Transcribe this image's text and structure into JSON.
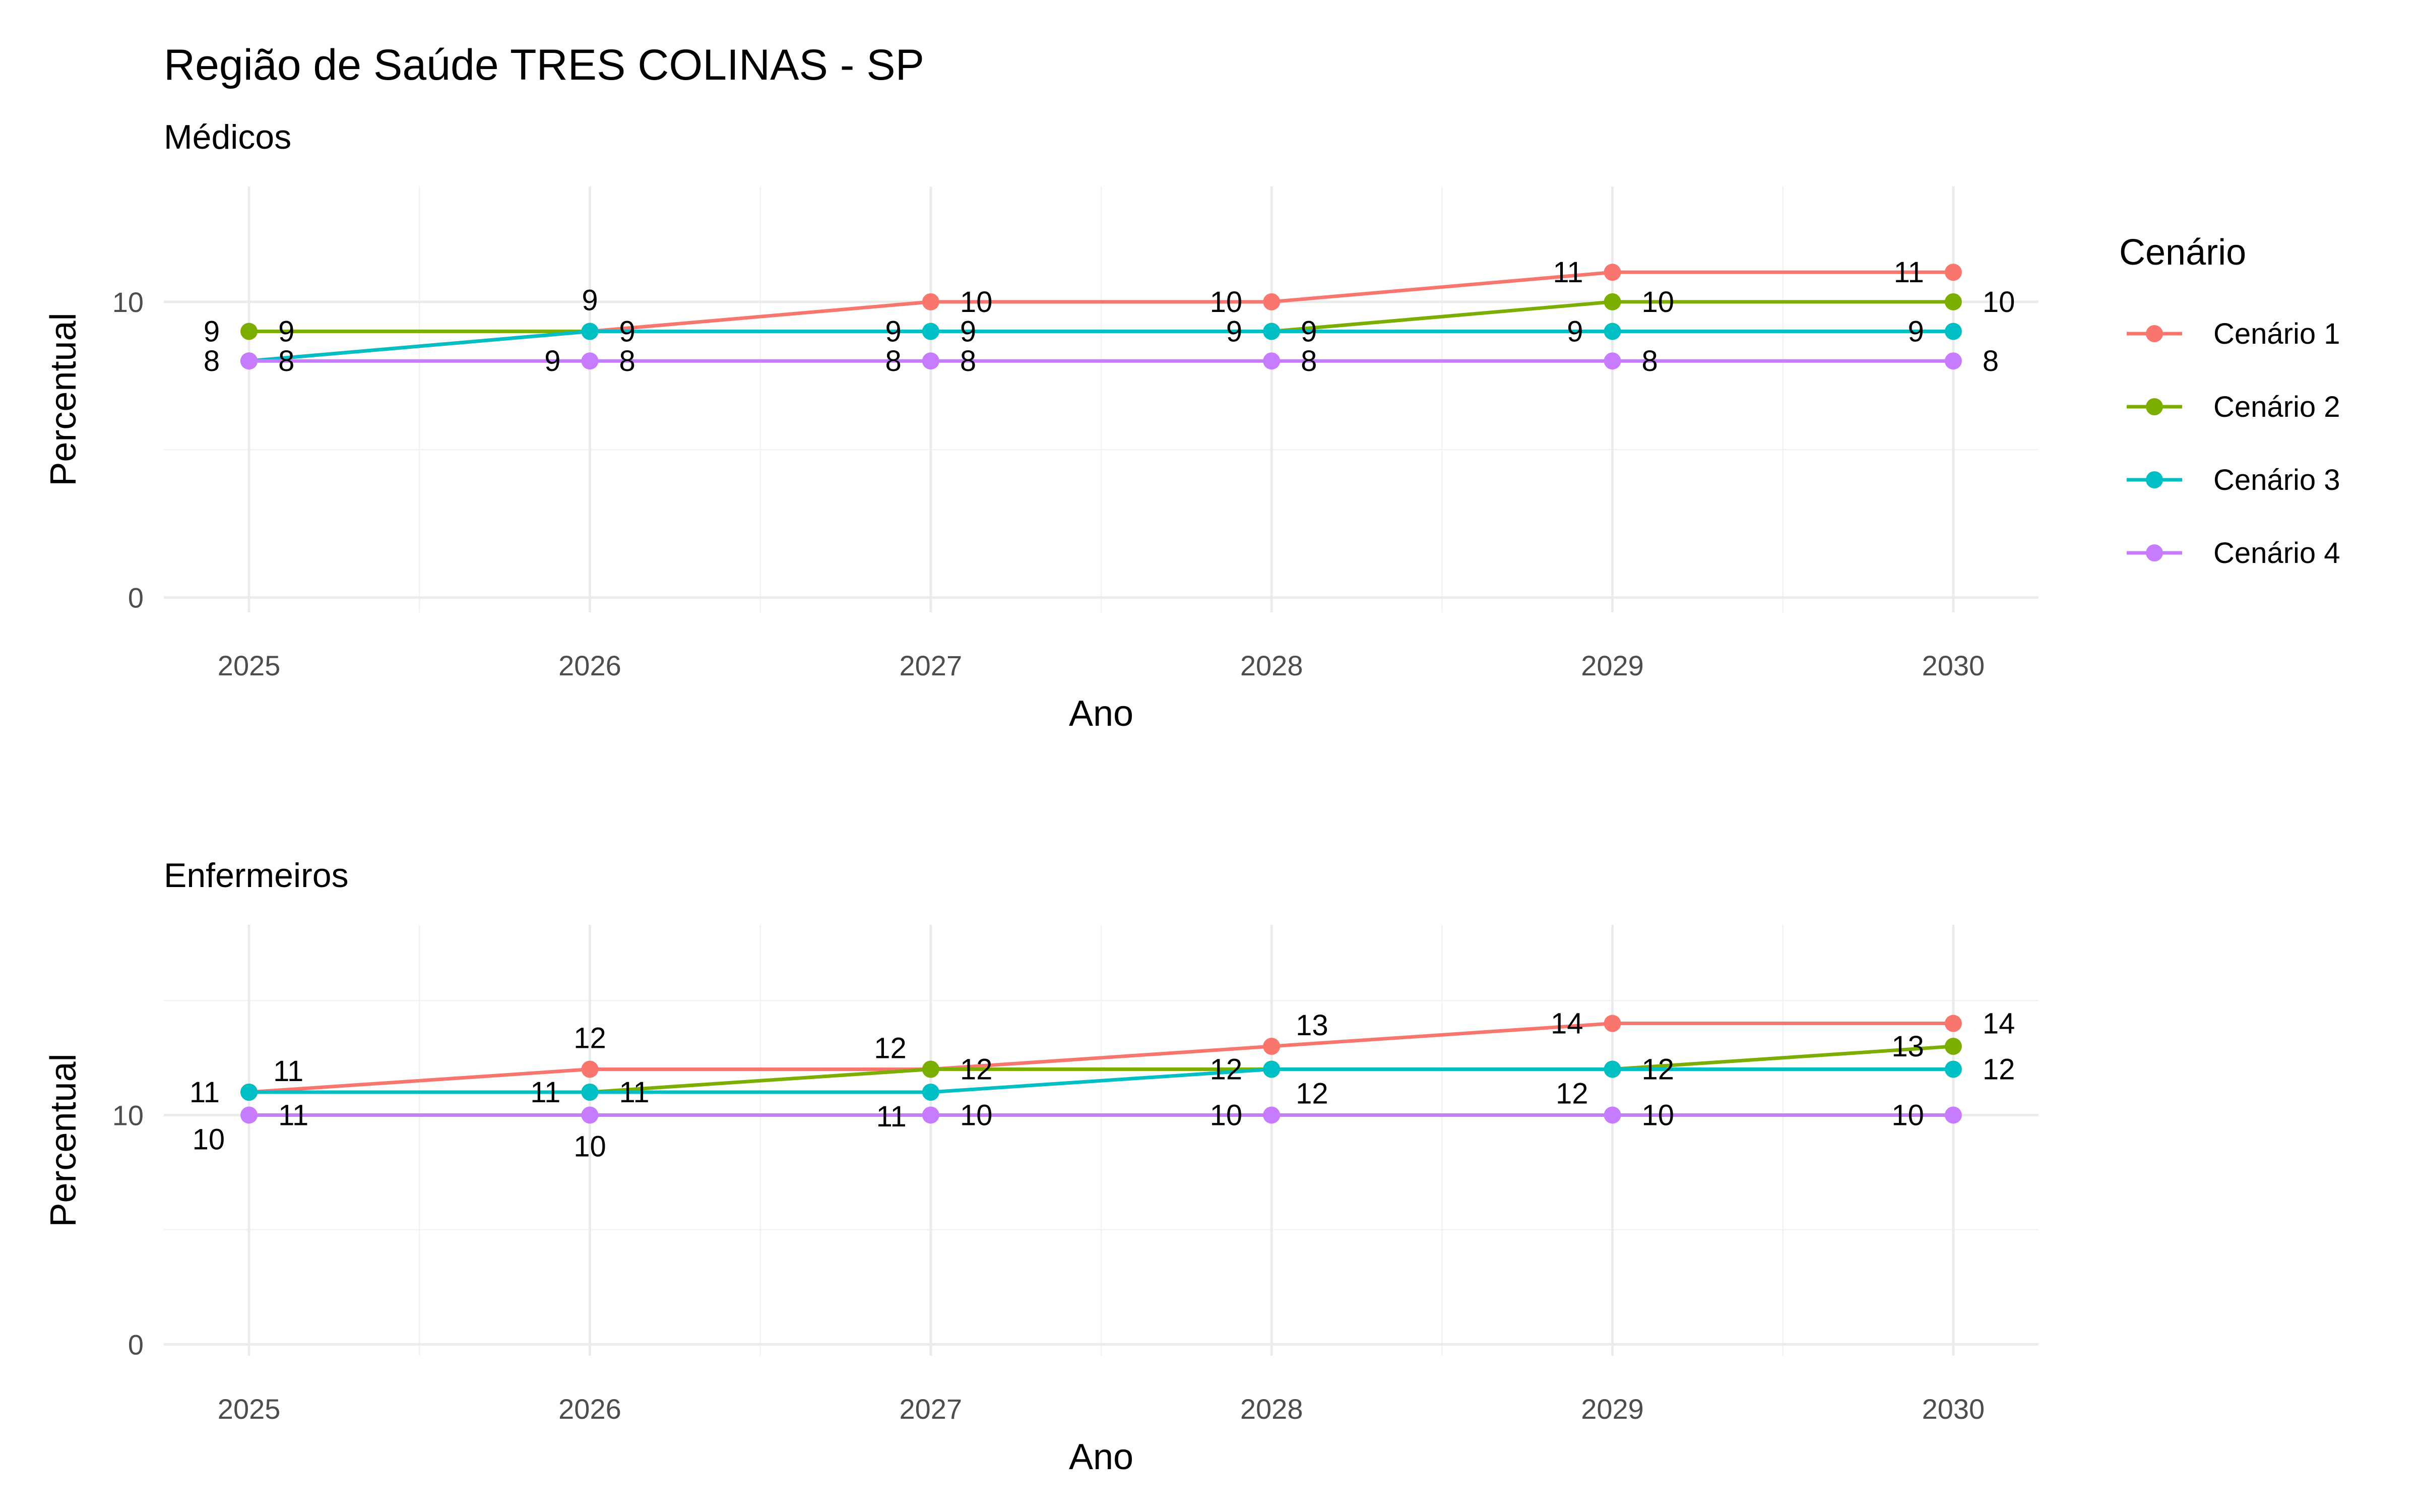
{
  "title": "Região de Saúde TRES COLINAS - SP",
  "legend": {
    "title": "Cenário",
    "position": "right",
    "items": [
      {
        "label": "Cenário 1",
        "color": "#F8766D"
      },
      {
        "label": "Cenário 2",
        "color": "#7CAE00"
      },
      {
        "label": "Cenário 3",
        "color": "#00BFC4"
      },
      {
        "label": "Cenário 4",
        "color": "#C77CFF"
      }
    ]
  },
  "chart_data": [
    {
      "type": "line",
      "subtitle": "Médicos",
      "xlabel": "Ano",
      "ylabel": "Percentual",
      "x": [
        2025,
        2026,
        2027,
        2028,
        2029,
        2030
      ],
      "y_ticks": [
        0,
        10
      ],
      "ylim": [
        -0.5,
        13.9
      ],
      "grid": true,
      "series": [
        {
          "name": "Cenário 1",
          "values": [
            8,
            9,
            10,
            10,
            11,
            11
          ]
        },
        {
          "name": "Cenário 2",
          "values": [
            9,
            9,
            9,
            9,
            10,
            10
          ]
        },
        {
          "name": "Cenário 3",
          "values": [
            8,
            9,
            9,
            9,
            9,
            9
          ]
        },
        {
          "name": "Cenário 4",
          "values": [
            8,
            8,
            8,
            8,
            8,
            8
          ]
        }
      ],
      "data_labels": [
        {
          "x": 2025,
          "y": 9,
          "text": "9",
          "side": "left"
        },
        {
          "x": 2025,
          "y": 9,
          "text": "9",
          "side": "right"
        },
        {
          "x": 2025,
          "y": 8,
          "text": "8",
          "side": "left"
        },
        {
          "x": 2025,
          "y": 8,
          "text": "8",
          "side": "right"
        },
        {
          "x": 2026,
          "y": 9,
          "text": "9",
          "side": "above"
        },
        {
          "x": 2026,
          "y": 9,
          "text": "9",
          "side": "right"
        },
        {
          "x": 2026,
          "y": 8,
          "text": "9",
          "side": "left"
        },
        {
          "x": 2026,
          "y": 8,
          "text": "8",
          "side": "right"
        },
        {
          "x": 2027,
          "y": 10,
          "text": "10",
          "side": "right"
        },
        {
          "x": 2027,
          "y": 9,
          "text": "9",
          "side": "left"
        },
        {
          "x": 2027,
          "y": 9,
          "text": "9",
          "side": "right"
        },
        {
          "x": 2027,
          "y": 8,
          "text": "8",
          "side": "left"
        },
        {
          "x": 2027,
          "y": 8,
          "text": "8",
          "side": "right"
        },
        {
          "x": 2028,
          "y": 10,
          "text": "10",
          "side": "left"
        },
        {
          "x": 2028,
          "y": 9,
          "text": "9",
          "side": "left"
        },
        {
          "x": 2028,
          "y": 9,
          "text": "9",
          "side": "right"
        },
        {
          "x": 2028,
          "y": 8,
          "text": "8",
          "side": "right"
        },
        {
          "x": 2029,
          "y": 11,
          "text": "11",
          "side": "left"
        },
        {
          "x": 2029,
          "y": 10,
          "text": "10",
          "side": "right"
        },
        {
          "x": 2029,
          "y": 9,
          "text": "9",
          "side": "left"
        },
        {
          "x": 2029,
          "y": 8,
          "text": "8",
          "side": "right"
        },
        {
          "x": 2030,
          "y": 11,
          "text": "11",
          "side": "left"
        },
        {
          "x": 2030,
          "y": 10,
          "text": "10",
          "side": "right"
        },
        {
          "x": 2030,
          "y": 9,
          "text": "9",
          "side": "left"
        },
        {
          "x": 2030,
          "y": 8,
          "text": "8",
          "side": "right"
        }
      ]
    },
    {
      "type": "line",
      "subtitle": "Enfermeiros",
      "xlabel": "Ano",
      "ylabel": "Percentual",
      "x": [
        2025,
        2026,
        2027,
        2028,
        2029,
        2030
      ],
      "y_ticks": [
        0,
        10
      ],
      "ylim": [
        -0.5,
        18.3
      ],
      "grid": true,
      "series": [
        {
          "name": "Cenário 1",
          "values": [
            11,
            12,
            12,
            13,
            14,
            14
          ]
        },
        {
          "name": "Cenário 2",
          "values": [
            11,
            11,
            12,
            12,
            12,
            13
          ]
        },
        {
          "name": "Cenário 3",
          "values": [
            11,
            11,
            11,
            12,
            12,
            12
          ]
        },
        {
          "name": "Cenário 4",
          "values": [
            10,
            10,
            10,
            10,
            10,
            10
          ]
        }
      ],
      "data_labels": [
        {
          "x": 2025,
          "y": 11,
          "text": "11",
          "side": "left"
        },
        {
          "x": 2025,
          "y": 11,
          "text": "11",
          "side": "upper-right"
        },
        {
          "x": 2025,
          "y": 10,
          "text": "10",
          "side": "lower-left"
        },
        {
          "x": 2025,
          "y": 10,
          "text": "11",
          "side": "right"
        },
        {
          "x": 2026,
          "y": 12,
          "text": "12",
          "side": "above"
        },
        {
          "x": 2026,
          "y": 11,
          "text": "11",
          "side": "left"
        },
        {
          "x": 2026,
          "y": 11,
          "text": "11",
          "side": "right"
        },
        {
          "x": 2026,
          "y": 10,
          "text": "10",
          "side": "below"
        },
        {
          "x": 2027,
          "y": 12,
          "text": "12",
          "side": "upper-left"
        },
        {
          "x": 2027,
          "y": 12,
          "text": "12",
          "side": "right"
        },
        {
          "x": 2027,
          "y": 11,
          "text": "11",
          "side": "lower-left"
        },
        {
          "x": 2027,
          "y": 10,
          "text": "10",
          "side": "right"
        },
        {
          "x": 2028,
          "y": 13,
          "text": "13",
          "side": "upper-right"
        },
        {
          "x": 2028,
          "y": 12,
          "text": "12",
          "side": "left"
        },
        {
          "x": 2028,
          "y": 12,
          "text": "12",
          "side": "lower-right"
        },
        {
          "x": 2028,
          "y": 10,
          "text": "10",
          "side": "left"
        },
        {
          "x": 2029,
          "y": 14,
          "text": "14",
          "side": "left"
        },
        {
          "x": 2029,
          "y": 12,
          "text": "12",
          "side": "right"
        },
        {
          "x": 2029,
          "y": 12,
          "text": "12",
          "side": "lower-left"
        },
        {
          "x": 2029,
          "y": 10,
          "text": "10",
          "side": "right"
        },
        {
          "x": 2030,
          "y": 14,
          "text": "14",
          "side": "right"
        },
        {
          "x": 2030,
          "y": 13,
          "text": "13",
          "side": "left"
        },
        {
          "x": 2030,
          "y": 12,
          "text": "12",
          "side": "right"
        },
        {
          "x": 2030,
          "y": 10,
          "text": "10",
          "side": "left"
        }
      ]
    }
  ]
}
